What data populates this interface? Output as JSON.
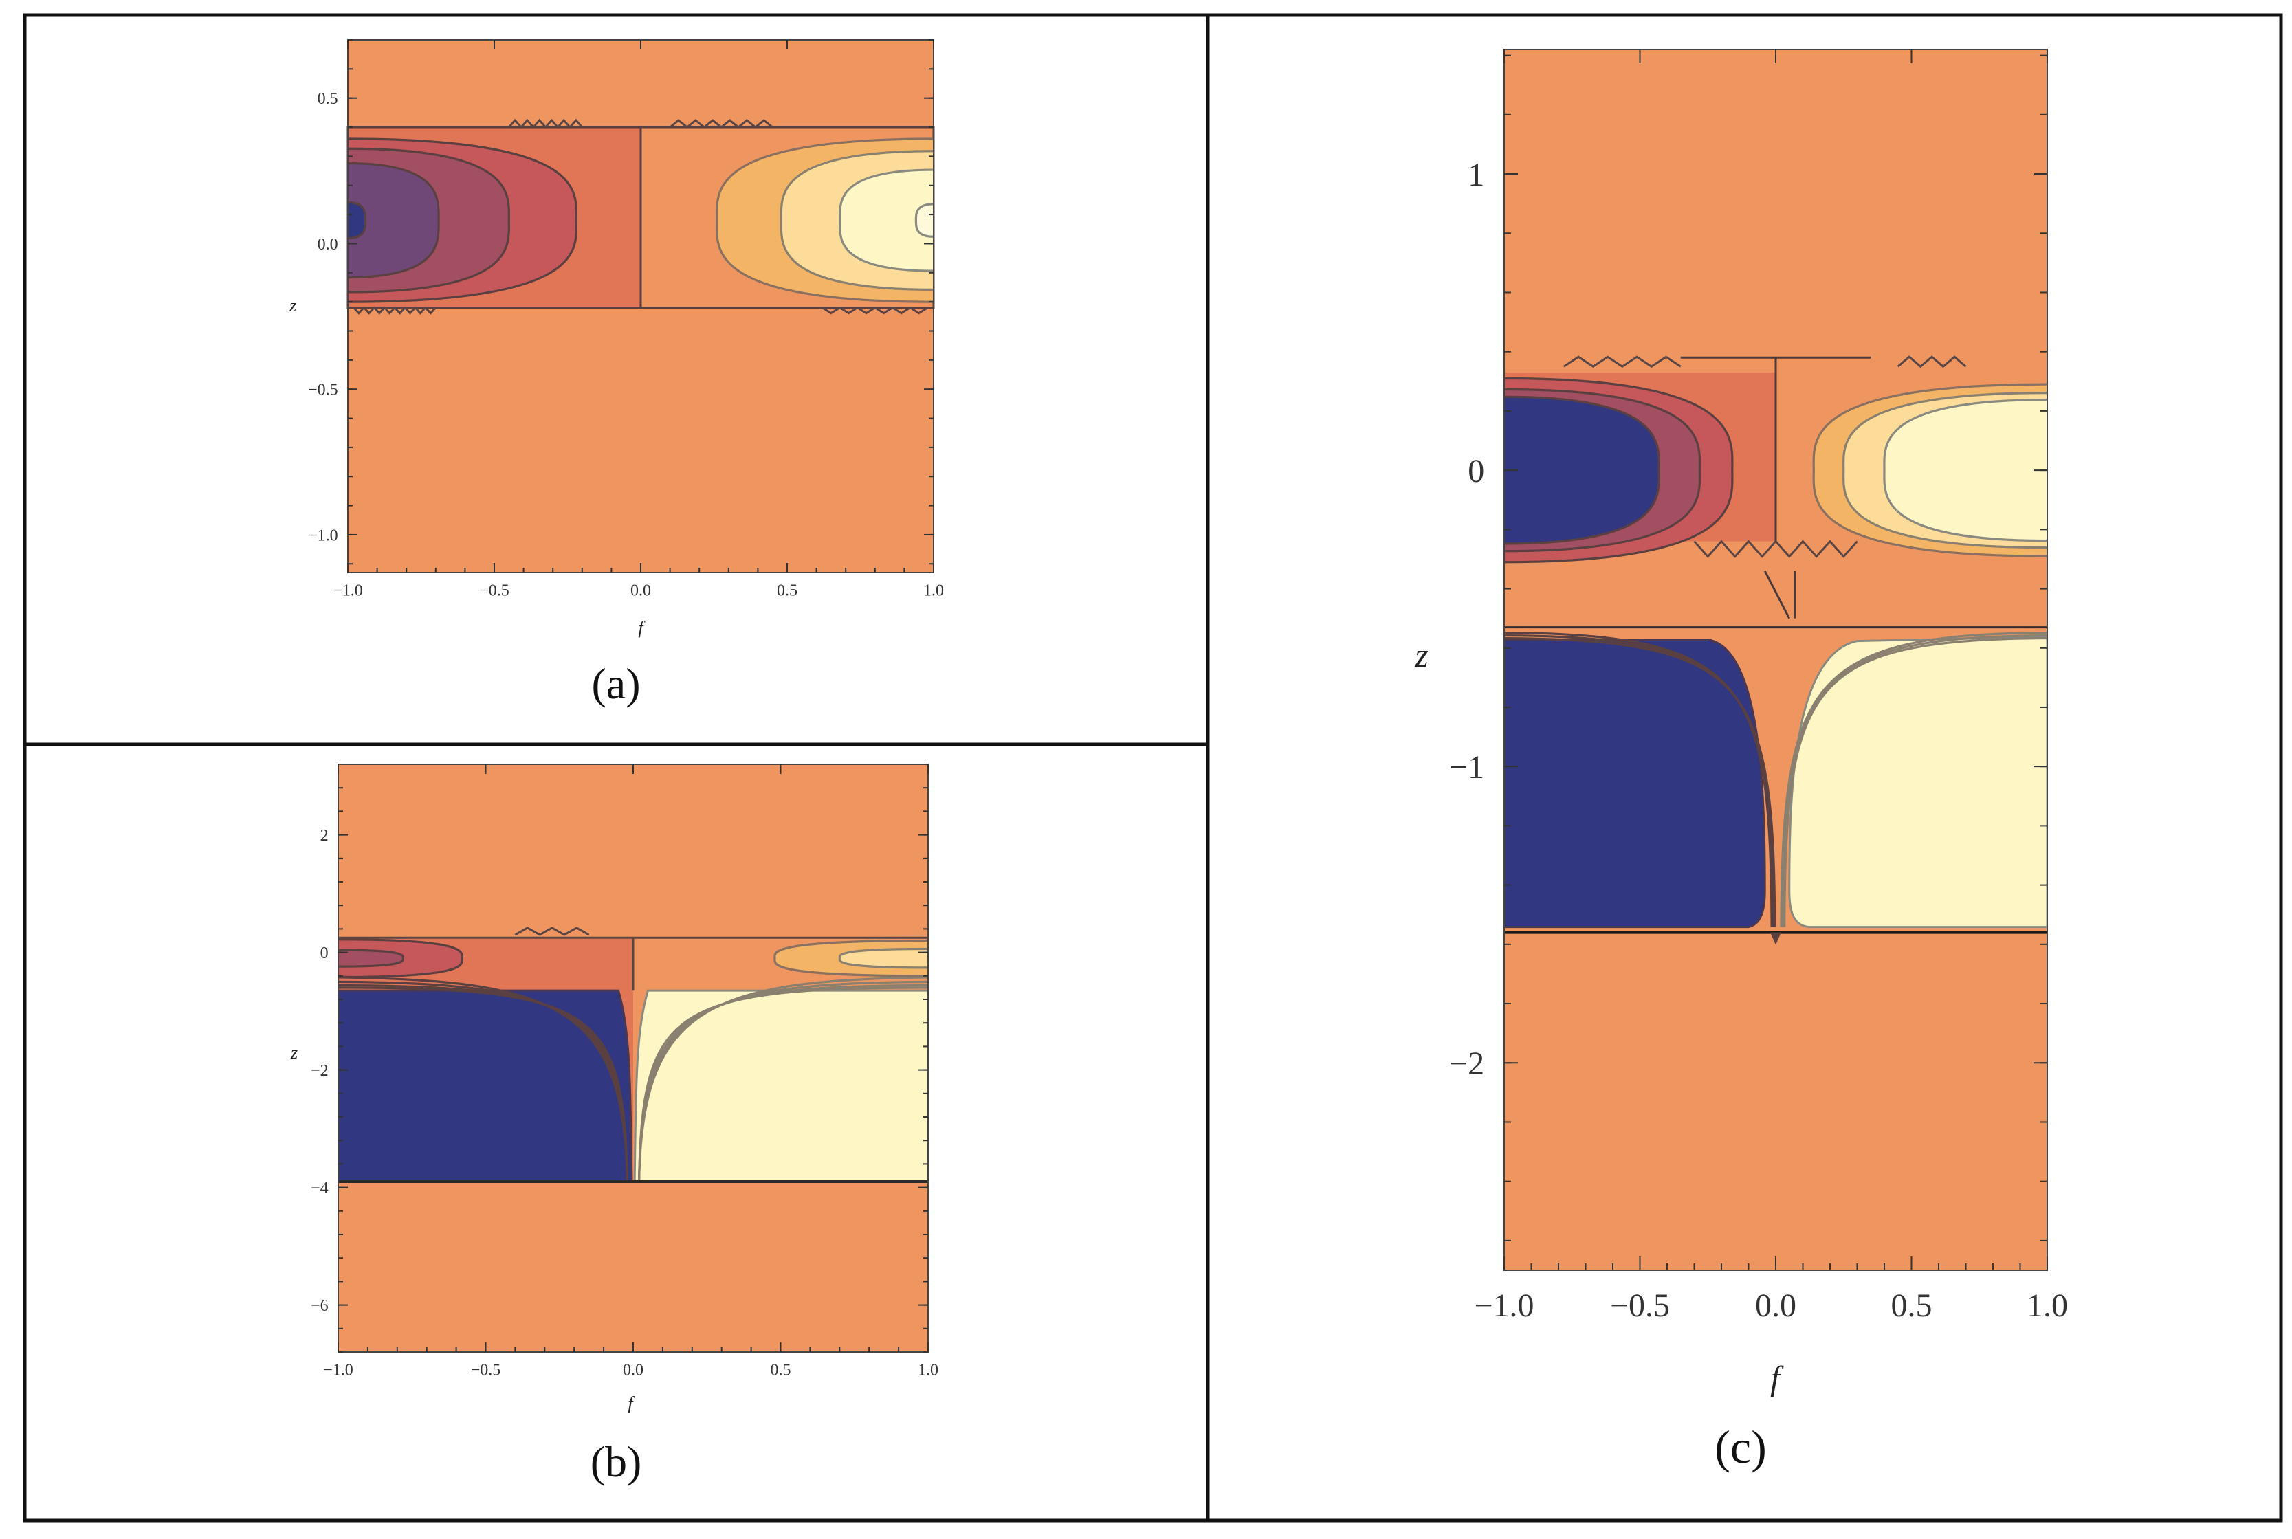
{
  "chart_data": [
    {
      "panel": "(a)",
      "type": "heatmap",
      "subtype": "contour",
      "xlabel": "f",
      "ylabel": "z",
      "xlim": [
        -1.0,
        1.0
      ],
      "ylim": [
        -1.13,
        0.7
      ],
      "xticks": [
        "−1.0",
        "−0.5",
        "0.0",
        "0.5",
        "1.0"
      ],
      "yticks": [
        "0.5",
        "0.0",
        "−0.5",
        "−1.0"
      ],
      "xtick_values": [
        -1.0,
        -0.5,
        0.0,
        0.5,
        1.0
      ],
      "ytick_values": [
        0.5,
        0.0,
        -0.5,
        -1.0
      ],
      "band": {
        "z_low": -0.22,
        "z_high": 0.4,
        "center_z": 0.08
      },
      "contour_levels_left": [
        0.8,
        0.55,
        0.3
      ],
      "contour_levels_right": [
        0.75,
        0.5,
        0.3
      ]
    },
    {
      "panel": "(b)",
      "type": "heatmap",
      "subtype": "contour",
      "xlabel": "f",
      "ylabel": "z",
      "xlim": [
        -1.0,
        1.0
      ],
      "ylim": [
        -6.8,
        3.2
      ],
      "xticks": [
        "−1.0",
        "−0.5",
        "0.0",
        "0.5",
        "1.0"
      ],
      "yticks": [
        "2",
        "0",
        "−2",
        "−4",
        "−6"
      ],
      "xtick_values": [
        -1.0,
        -0.5,
        0.0,
        0.5,
        1.0
      ],
      "ytick_values": [
        2,
        0,
        -2,
        -4,
        -6
      ],
      "upper_band": {
        "z_low": -0.45,
        "z_high": 0.25,
        "center_z": -0.1
      },
      "lower_band": {
        "z_low": -3.9,
        "z_high": -0.65
      }
    },
    {
      "panel": "(c)",
      "type": "heatmap",
      "subtype": "contour",
      "xlabel": "f",
      "ylabel": "z",
      "xlim": [
        -1.0,
        1.0
      ],
      "ylim": [
        -2.7,
        1.42
      ],
      "xticks": [
        "−1.0",
        "−0.5",
        "0.0",
        "0.5",
        "1.0"
      ],
      "yticks": [
        "1",
        "0",
        "−1",
        "−2"
      ],
      "xtick_values": [
        -1.0,
        -0.5,
        0.0,
        0.5,
        1.0
      ],
      "ytick_values": [
        1,
        0,
        -1,
        -2
      ],
      "upper_band": {
        "z_low": -0.24,
        "z_high": 0.33,
        "center_z": 0.0
      },
      "lower_band": {
        "z_low": -1.56,
        "z_high": -0.53
      }
    }
  ],
  "colors": {
    "background": "#ef9660",
    "darkest": "#313780",
    "dark_purple": "#6f4878",
    "mauve": "#a24f62",
    "brick": "#c6575a",
    "red_orange": "#e07656",
    "light_orange": "#f4b466",
    "pale_yellow": "#fcdc98",
    "cream": "#fff6c6",
    "contour_line_left": "#5a4040",
    "contour_line_right": "#8a8a80"
  }
}
